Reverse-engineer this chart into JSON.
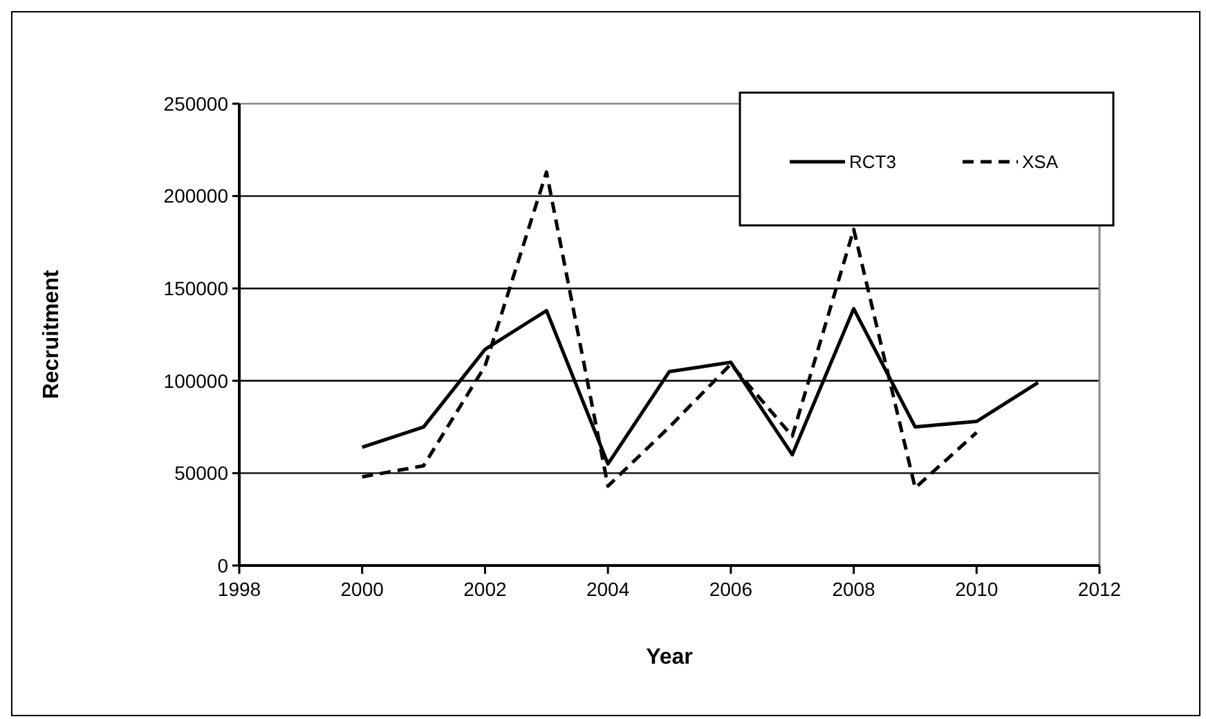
{
  "chart_data": {
    "type": "line",
    "xlabel": "Year",
    "ylabel": "Recruitment",
    "x": [
      2000,
      2001,
      2002,
      2003,
      2004,
      2005,
      2006,
      2007,
      2008,
      2009,
      2010,
      2011
    ],
    "series": [
      {
        "name": "RCT3",
        "color": "#000000",
        "line_style": "solid",
        "values": [
          64000,
          75000,
          117000,
          138000,
          55000,
          105000,
          110000,
          60000,
          139000,
          75000,
          78000,
          99000
        ]
      },
      {
        "name": "XSA",
        "color": "#000000",
        "line_style": "dashed",
        "values": [
          48000,
          54000,
          108000,
          213000,
          43000,
          75000,
          109000,
          70000,
          182000,
          42000,
          72000,
          null
        ]
      }
    ],
    "xlim": [
      1998,
      2012
    ],
    "xticks": [
      1998,
      2000,
      2002,
      2004,
      2006,
      2008,
      2010,
      2012
    ],
    "ylim": [
      0,
      250000
    ],
    "yticks": [
      0,
      50000,
      100000,
      150000,
      200000,
      250000
    ],
    "grid": "y",
    "legend": "top right",
    "marker": "none"
  }
}
